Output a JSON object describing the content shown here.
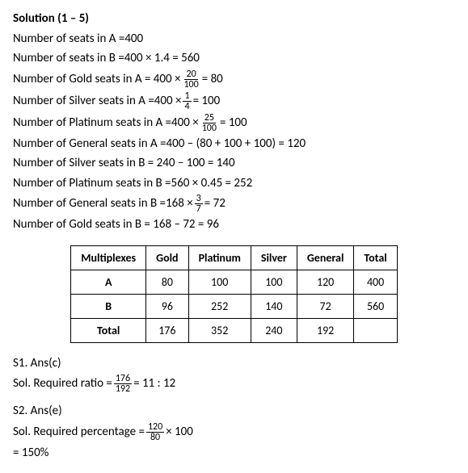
{
  "header": "Solution (1 – 5)",
  "L1a": "Number of seats in A = ",
  "L1b": "400",
  "L2a": "Number of seats in B =",
  "L2b": "400 × 1.4 = 560",
  "L3a": "Number of Gold seats in A = 400 × ",
  "L3n": "20",
  "L3d": "100",
  "L3b": " = 80",
  "L4a": "Number of Silver seats in A =400 × ",
  "L4n": "1",
  "L4d": "4",
  "L4b": " = 100",
  "L5a": "Number of Platinum seats in A =400  × ",
  "L5n": "25",
  "L5d": "100",
  "L5b": " = 100",
  "L6": "Number of General seats in A =400 –  (80 + 100 + 100) = 120",
  "L7": "Number of Silver seats in B = 240  − 100 = 140",
  "L8": "Number of Platinum seats in B =560 × 0.45 = 252",
  "L9a": "Number of General seats in B =168 × ",
  "L9n": "3",
  "L9d": "7",
  "L9b": " = 72",
  "L10": "Number of Gold seats in B = 168 – 72 = 96",
  "table": {
    "cols": [
      "Multiplexes",
      "Gold",
      "Platinum",
      "Silver",
      "General",
      "Total"
    ],
    "rows": [
      [
        "A",
        "80",
        "100",
        "100",
        "120",
        "400"
      ],
      [
        "B",
        "96",
        "252",
        "140",
        "72",
        "560"
      ],
      [
        "Total",
        "176",
        "352",
        "240",
        "192",
        ""
      ]
    ]
  },
  "S1h": "S1. Ans(c)",
  "S1a": "Sol. Required ratio  = ",
  "S1n": "176",
  "S1d": "192",
  "S1b": " = 11 : 12",
  "S2h": "S2. Ans(e)",
  "S2a": "Sol. Required percentage = ",
  "S2n": "120",
  "S2d": "80",
  "S2b": " × 100",
  "S2c": "= 150%"
}
